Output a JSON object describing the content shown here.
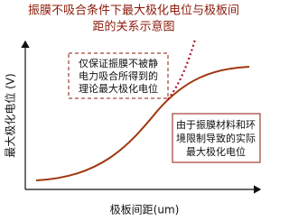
{
  "title": {
    "lines": [
      "振膜不吸合条件下最大极化电位与极板间",
      "距的关系示意图"
    ]
  },
  "y_axis_label": "最大极化电位 (V)",
  "x_axis_label": "极板间距(um)",
  "theoretical_note": {
    "lines": [
      "仅保证振膜不被静",
      "电力吸合所得到的",
      "理论最大极化电位"
    ]
  },
  "actual_note": {
    "lines": [
      "由于振膜材料和环",
      "境限制导致的实际",
      "最大极化电位"
    ]
  }
}
